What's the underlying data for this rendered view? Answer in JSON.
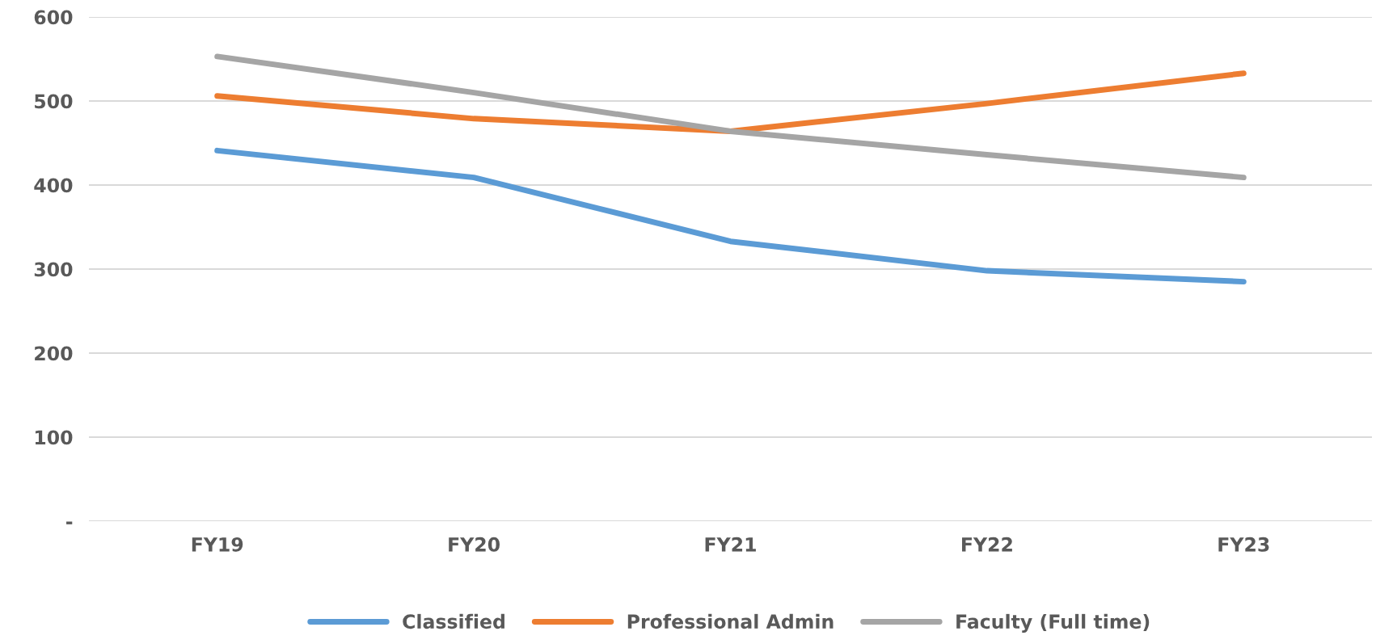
{
  "chart_data": {
    "type": "line",
    "categories": [
      "FY19",
      "FY20",
      "FY21",
      "FY22",
      "FY23"
    ],
    "series": [
      {
        "name": "Classified",
        "color": "#5b9bd5",
        "values": [
          441,
          409,
          333,
          298,
          285
        ]
      },
      {
        "name": "Professional Admin",
        "color": "#ed7d31",
        "values": [
          506,
          479,
          464,
          497,
          533
        ]
      },
      {
        "name": "Faculty (Full time)",
        "color": "#a5a5a5",
        "values": [
          553,
          510,
          464,
          436,
          409
        ]
      }
    ],
    "ylim": [
      0,
      600
    ],
    "yticks": [
      {
        "value": 0,
        "label": "-"
      },
      100,
      200,
      300,
      400,
      500,
      600
    ],
    "grid": "y",
    "legend": "bottom",
    "marker": "none",
    "line_style": "solid"
  }
}
